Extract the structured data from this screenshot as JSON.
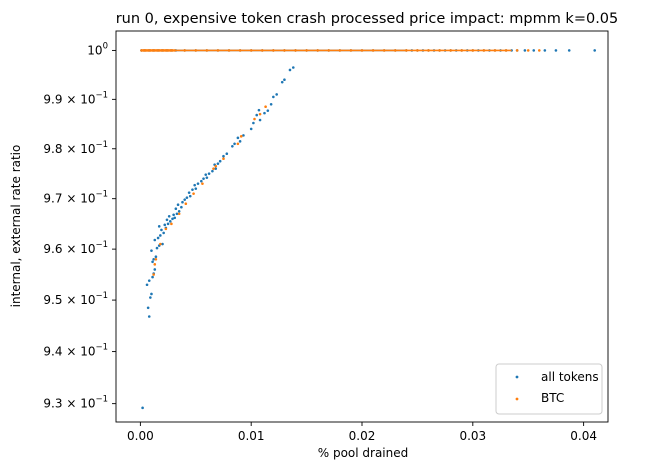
{
  "chart_data": {
    "type": "scatter",
    "title": "run 0, expensive token crash processed price impact: mpmm k=0.05",
    "xlabel": "% pool drained",
    "ylabel": "internal, external rate ratio",
    "xlim": [
      -0.0022,
      0.0422
    ],
    "ylim": [
      0.9265,
      1.004
    ],
    "yscale": "log",
    "grid": false,
    "legend_position": "lower-right",
    "x_ticks": [
      {
        "value": 0.0,
        "label": "0.00"
      },
      {
        "value": 0.01,
        "label": "0.01"
      },
      {
        "value": 0.02,
        "label": "0.02"
      },
      {
        "value": 0.03,
        "label": "0.03"
      },
      {
        "value": 0.04,
        "label": "0.04"
      }
    ],
    "y_ticks": [
      {
        "value": 1.0,
        "base": "10",
        "exp": "0"
      },
      {
        "value": 0.99,
        "base": "9.9 × 10",
        "exp": "−1"
      },
      {
        "value": 0.98,
        "base": "9.8 × 10",
        "exp": "−1"
      },
      {
        "value": 0.97,
        "base": "9.7 × 10",
        "exp": "−1"
      },
      {
        "value": 0.96,
        "base": "9.6 × 10",
        "exp": "−1"
      },
      {
        "value": 0.95,
        "base": "9.5 × 10",
        "exp": "−1"
      },
      {
        "value": 0.94,
        "base": "9.4 × 10",
        "exp": "−1"
      },
      {
        "value": 0.93,
        "base": "9.3 × 10",
        "exp": "−1"
      }
    ],
    "series": [
      {
        "name": "all tokens",
        "color": "#1f77b4",
        "points": [
          [
            0.0001,
            1.0
          ],
          [
            0.0004,
            1.0
          ],
          [
            0.0008,
            1.0
          ],
          [
            0.0012,
            1.0
          ],
          [
            0.0016,
            1.0
          ],
          [
            0.002,
            1.0
          ],
          [
            0.0024,
            1.0
          ],
          [
            0.0028,
            1.0
          ],
          [
            0.0032,
            1.0
          ],
          [
            0.004,
            1.0
          ],
          [
            0.005,
            1.0
          ],
          [
            0.006,
            1.0
          ],
          [
            0.007,
            1.0
          ],
          [
            0.008,
            1.0
          ],
          [
            0.009,
            1.0
          ],
          [
            0.01,
            1.0
          ],
          [
            0.011,
            1.0
          ],
          [
            0.012,
            1.0
          ],
          [
            0.013,
            1.0
          ],
          [
            0.014,
            1.0
          ],
          [
            0.015,
            1.0
          ],
          [
            0.016,
            1.0
          ],
          [
            0.017,
            1.0
          ],
          [
            0.018,
            1.0
          ],
          [
            0.019,
            1.0
          ],
          [
            0.02,
            1.0
          ],
          [
            0.021,
            1.0
          ],
          [
            0.022,
            1.0
          ],
          [
            0.023,
            1.0
          ],
          [
            0.024,
            1.0
          ],
          [
            0.0245,
            1.0
          ],
          [
            0.025,
            1.0
          ],
          [
            0.0255,
            1.0
          ],
          [
            0.026,
            1.0
          ],
          [
            0.0265,
            1.0
          ],
          [
            0.027,
            1.0
          ],
          [
            0.0275,
            1.0
          ],
          [
            0.028,
            1.0
          ],
          [
            0.0285,
            1.0
          ],
          [
            0.029,
            1.0
          ],
          [
            0.0295,
            1.0
          ],
          [
            0.03,
            1.0
          ],
          [
            0.0305,
            1.0
          ],
          [
            0.031,
            1.0
          ],
          [
            0.0315,
            1.0
          ],
          [
            0.032,
            1.0
          ],
          [
            0.0325,
            1.0
          ],
          [
            0.033,
            1.0
          ],
          [
            0.0335,
            1.0
          ],
          [
            0.034,
            1.0
          ],
          [
            0.0347,
            1.0
          ],
          [
            0.0355,
            1.0
          ],
          [
            0.0365,
            1.0
          ],
          [
            0.0375,
            1.0
          ],
          [
            0.0387,
            1.0
          ],
          [
            0.041,
            1.0
          ],
          [
            0.0002,
            0.9292
          ],
          [
            0.0008,
            0.9468
          ],
          [
            0.0007,
            0.9485
          ],
          [
            0.0009,
            0.9505
          ],
          [
            0.001,
            0.9512
          ],
          [
            0.0006,
            0.953
          ],
          [
            0.0008,
            0.9538
          ],
          [
            0.0011,
            0.9545
          ],
          [
            0.0012,
            0.9552
          ],
          [
            0.0013,
            0.956
          ],
          [
            0.0011,
            0.9575
          ],
          [
            0.0012,
            0.958
          ],
          [
            0.0014,
            0.9585
          ],
          [
            0.001,
            0.9597
          ],
          [
            0.0015,
            0.9602
          ],
          [
            0.0017,
            0.9607
          ],
          [
            0.002,
            0.961
          ],
          [
            0.0013,
            0.9618
          ],
          [
            0.0016,
            0.9622
          ],
          [
            0.0018,
            0.9627
          ],
          [
            0.0021,
            0.9632
          ],
          [
            0.0019,
            0.9638
          ],
          [
            0.0023,
            0.9642
          ],
          [
            0.0017,
            0.9645
          ],
          [
            0.0022,
            0.9648
          ],
          [
            0.0025,
            0.965
          ],
          [
            0.0027,
            0.9655
          ],
          [
            0.0024,
            0.9658
          ],
          [
            0.0029,
            0.966
          ],
          [
            0.0031,
            0.9662
          ],
          [
            0.0026,
            0.9665
          ],
          [
            0.003,
            0.9668
          ],
          [
            0.0033,
            0.967
          ],
          [
            0.0035,
            0.9675
          ],
          [
            0.0032,
            0.968
          ],
          [
            0.0037,
            0.9683
          ],
          [
            0.0034,
            0.9688
          ],
          [
            0.0038,
            0.9693
          ],
          [
            0.004,
            0.9698
          ],
          [
            0.0042,
            0.9702
          ],
          [
            0.0045,
            0.9705
          ],
          [
            0.0044,
            0.9712
          ],
          [
            0.0047,
            0.9718
          ],
          [
            0.005,
            0.972
          ],
          [
            0.0049,
            0.9727
          ],
          [
            0.0052,
            0.973
          ],
          [
            0.0055,
            0.9735
          ],
          [
            0.0057,
            0.974
          ],
          [
            0.006,
            0.9742
          ],
          [
            0.0059,
            0.9748
          ],
          [
            0.0062,
            0.975
          ],
          [
            0.0065,
            0.9755
          ],
          [
            0.0068,
            0.976
          ],
          [
            0.0067,
            0.9768
          ],
          [
            0.007,
            0.977
          ],
          [
            0.0072,
            0.9775
          ],
          [
            0.0075,
            0.9785
          ],
          [
            0.0078,
            0.979
          ],
          [
            0.0083,
            0.9805
          ],
          [
            0.0085,
            0.981
          ],
          [
            0.009,
            0.9815
          ],
          [
            0.0088,
            0.9822
          ],
          [
            0.0093,
            0.9827
          ],
          [
            0.01,
            0.984
          ],
          [
            0.0102,
            0.9852
          ],
          [
            0.0108,
            0.9858
          ],
          [
            0.0105,
            0.9868
          ],
          [
            0.0112,
            0.9872
          ],
          [
            0.0115,
            0.9877
          ],
          [
            0.0107,
            0.9878
          ],
          [
            0.0118,
            0.989
          ],
          [
            0.012,
            0.9905
          ],
          [
            0.0123,
            0.991
          ],
          [
            0.0128,
            0.9935
          ],
          [
            0.013,
            0.994
          ],
          [
            0.0135,
            0.996
          ],
          [
            0.0138,
            0.9965
          ]
        ]
      },
      {
        "name": "BTC",
        "color": "#ff7f0e",
        "points": [
          [
            0.0001,
            1.0
          ],
          [
            0.0003,
            1.0
          ],
          [
            0.0005,
            1.0
          ],
          [
            0.0007,
            1.0
          ],
          [
            0.0009,
            1.0
          ],
          [
            0.0011,
            1.0
          ],
          [
            0.0013,
            1.0
          ],
          [
            0.0015,
            1.0
          ],
          [
            0.0017,
            1.0
          ],
          [
            0.0019,
            1.0
          ],
          [
            0.0021,
            1.0
          ],
          [
            0.0023,
            1.0
          ],
          [
            0.0025,
            1.0
          ],
          [
            0.0027,
            1.0
          ],
          [
            0.0029,
            1.0
          ],
          [
            0.0031,
            1.0
          ],
          [
            0.004,
            1.0
          ],
          [
            0.005,
            1.0
          ],
          [
            0.006,
            1.0
          ],
          [
            0.007,
            1.0
          ],
          [
            0.008,
            1.0
          ],
          [
            0.009,
            1.0
          ],
          [
            0.01,
            1.0
          ],
          [
            0.011,
            1.0
          ],
          [
            0.012,
            1.0
          ],
          [
            0.013,
            1.0
          ],
          [
            0.014,
            1.0
          ],
          [
            0.015,
            1.0
          ],
          [
            0.016,
            1.0
          ],
          [
            0.017,
            1.0
          ],
          [
            0.018,
            1.0
          ],
          [
            0.019,
            1.0
          ],
          [
            0.02,
            1.0
          ],
          [
            0.021,
            1.0
          ],
          [
            0.022,
            1.0
          ],
          [
            0.023,
            1.0
          ],
          [
            0.024,
            1.0
          ],
          [
            0.025,
            1.0
          ],
          [
            0.026,
            1.0
          ],
          [
            0.027,
            1.0
          ],
          [
            0.028,
            1.0
          ],
          [
            0.029,
            1.0
          ],
          [
            0.03,
            1.0
          ],
          [
            0.031,
            1.0
          ],
          [
            0.032,
            1.0
          ],
          [
            0.033,
            1.0
          ],
          [
            0.034,
            1.0
          ],
          [
            0.035,
            1.0
          ],
          [
            0.036,
            1.0
          ],
          [
            0.0012,
            0.955
          ],
          [
            0.0013,
            0.957
          ],
          [
            0.0014,
            0.958
          ],
          [
            0.0018,
            0.961
          ],
          [
            0.0023,
            0.964
          ],
          [
            0.0028,
            0.965
          ],
          [
            0.0035,
            0.967
          ],
          [
            0.0041,
            0.969
          ],
          [
            0.0048,
            0.971
          ],
          [
            0.0056,
            0.973
          ],
          [
            0.0066,
            0.976
          ],
          [
            0.0068,
            0.9765
          ],
          [
            0.0075,
            0.978
          ],
          [
            0.0088,
            0.981
          ],
          [
            0.0091,
            0.9825
          ],
          [
            0.0103,
            0.986
          ],
          [
            0.0108,
            0.987
          ],
          [
            0.0113,
            0.9885
          ]
        ]
      }
    ]
  }
}
